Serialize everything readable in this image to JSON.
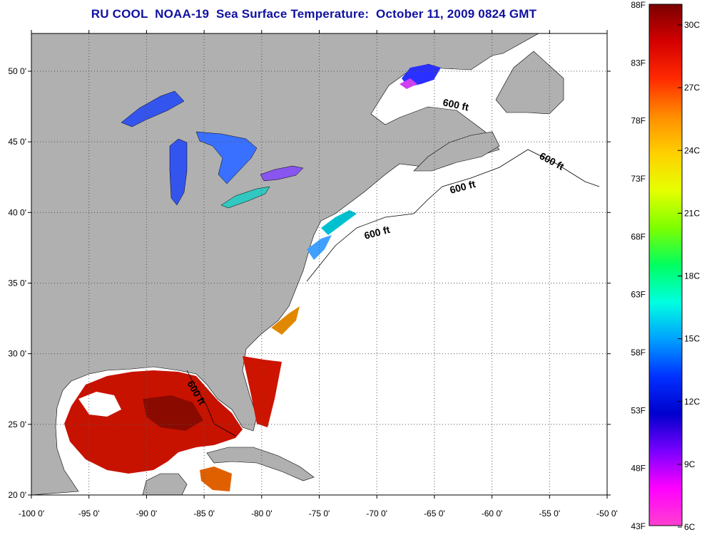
{
  "title": "RU COOL  NOAA-19  Sea Surface Temperature:  October 11, 2009 0824 GMT",
  "map": {
    "lon_labels": [
      "-100 0'",
      "-95 0'",
      "-90 0'",
      "-85 0'",
      "-80 0'",
      "-75 0'",
      "-70 0'",
      "-65 0'",
      "-60 0'",
      "-55 0'",
      "-50 0'"
    ],
    "lat_labels": [
      "50 0'",
      "45 0'",
      "40 0'",
      "35 0'",
      "30 0'",
      "25 0'",
      "20 0'"
    ],
    "isobath_labels": [
      "600 ft",
      "600 ft",
      "600 ft",
      "600 ft",
      "600 ft"
    ],
    "colors": {
      "land": "#b0b0b0",
      "ocean_cloud": "#ffffff",
      "warm_sst": "#cc1100",
      "cool_sst": "#3355ee"
    }
  },
  "colorbar": {
    "fahrenheit_labels": [
      "88F",
      "83F",
      "78F",
      "73F",
      "68F",
      "63F",
      "58F",
      "53F",
      "48F",
      "43F"
    ],
    "celsius_labels": [
      "30C",
      "27C",
      "24C",
      "21C",
      "18C",
      "15C",
      "12C",
      "9C",
      "6C"
    ],
    "colors": [
      "#7a0000",
      "#d40000",
      "#ff2a00",
      "#ff8c00",
      "#ffd000",
      "#e6ff00",
      "#7dff00",
      "#00ff60",
      "#00ffe0",
      "#00a0ff",
      "#0030ff",
      "#0000cc",
      "#7a00ff",
      "#ff00ff",
      "#ff40d0"
    ]
  }
}
